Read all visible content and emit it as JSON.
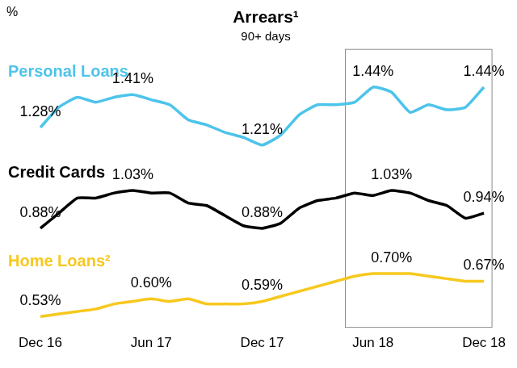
{
  "chart_data": {
    "type": "line",
    "title": "Arrears¹",
    "subtitle": "90+ days",
    "y_label": "%",
    "categories": [
      "Dec 16",
      null,
      null,
      null,
      null,
      null,
      "Jun 17",
      null,
      null,
      null,
      null,
      null,
      "Dec 17",
      null,
      null,
      null,
      null,
      null,
      "Jun 18",
      null,
      null,
      null,
      null,
      null,
      "Dec 18"
    ],
    "series": [
      {
        "name": "Personal Loans",
        "color": "#4dc4ea",
        "values": [
          1.28,
          1.36,
          1.4,
          1.38,
          1.4,
          1.41,
          1.39,
          1.37,
          1.31,
          1.29,
          1.26,
          1.24,
          1.21,
          1.25,
          1.33,
          1.37,
          1.37,
          1.38,
          1.44,
          1.42,
          1.34,
          1.37,
          1.35,
          1.36,
          1.44
        ],
        "value_labels": [
          "1.28%",
          null,
          null,
          null,
          null,
          "1.41%",
          null,
          null,
          null,
          null,
          null,
          null,
          "1.21%",
          null,
          null,
          null,
          null,
          null,
          "1.44%",
          null,
          null,
          null,
          null,
          null,
          "1.44%"
        ]
      },
      {
        "name": "Credit Cards",
        "color": "#000000",
        "values": [
          0.88,
          0.94,
          1.0,
          1.0,
          1.02,
          1.03,
          1.02,
          1.02,
          0.98,
          0.97,
          0.93,
          0.89,
          0.88,
          0.9,
          0.96,
          0.99,
          1.0,
          1.02,
          1.01,
          1.03,
          1.02,
          0.99,
          0.97,
          0.92,
          0.94
        ],
        "value_labels": [
          "0.88%",
          null,
          null,
          null,
          null,
          "1.03%",
          null,
          null,
          null,
          null,
          null,
          null,
          "0.88%",
          null,
          null,
          null,
          null,
          null,
          null,
          "1.03%",
          null,
          null,
          null,
          null,
          "0.94%"
        ]
      },
      {
        "name": "Home Loans²",
        "color": "#f7c81e",
        "values": [
          0.53,
          0.54,
          0.55,
          0.56,
          0.58,
          0.59,
          0.6,
          0.59,
          0.6,
          0.58,
          0.58,
          0.58,
          0.59,
          0.61,
          0.63,
          0.65,
          0.67,
          0.69,
          0.7,
          0.7,
          0.7,
          0.69,
          0.68,
          0.67,
          0.67
        ],
        "value_labels": [
          "0.53%",
          null,
          null,
          null,
          null,
          null,
          "0.60%",
          null,
          null,
          null,
          null,
          null,
          "0.59%",
          null,
          null,
          null,
          null,
          null,
          null,
          "0.70%",
          null,
          null,
          null,
          null,
          "0.67%"
        ]
      }
    ],
    "grid": false,
    "data_labels": true,
    "tick_labels": "x"
  }
}
